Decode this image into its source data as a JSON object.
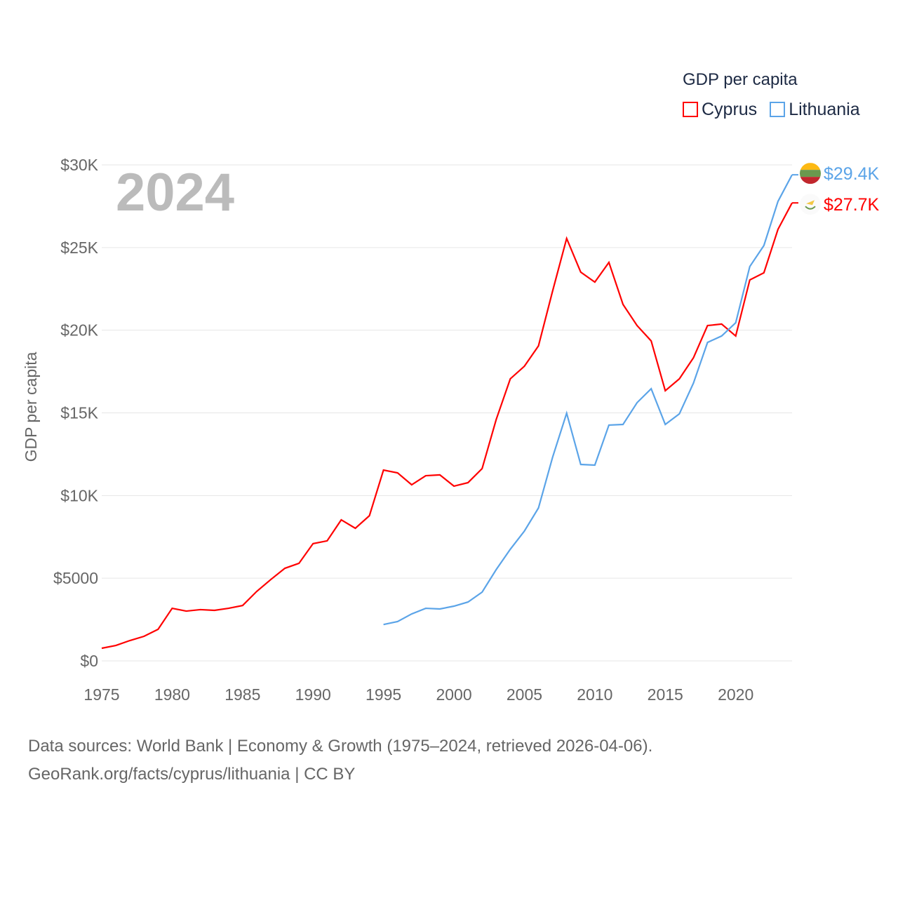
{
  "chart_data": {
    "type": "line",
    "title": "GDP per capita",
    "ylabel": "GDP per capita",
    "xlabel": "",
    "year_label": "2024",
    "xlim": [
      1975,
      2024
    ],
    "ylim": [
      0,
      30000
    ],
    "x_ticks": [
      "1975",
      "1980",
      "1985",
      "1990",
      "1995",
      "2000",
      "2005",
      "2010",
      "2015",
      "2020"
    ],
    "y_ticks": [
      {
        "value": 0,
        "label": "$0"
      },
      {
        "value": 5000,
        "label": "$5000"
      },
      {
        "value": 10000,
        "label": "$10K"
      },
      {
        "value": 15000,
        "label": "$15K"
      },
      {
        "value": 20000,
        "label": "$20K"
      },
      {
        "value": 25000,
        "label": "$25K"
      },
      {
        "value": 30000,
        "label": "$30K"
      }
    ],
    "grid": true,
    "legend_position": "top-right",
    "series": [
      {
        "name": "Cyprus",
        "color": "#ff0000",
        "end_label": "$27.7K",
        "flag": "cyprus-flag",
        "start": 1975,
        "values": [
          764,
          930,
          1230,
          1485,
          1910,
          3180,
          3010,
          3100,
          3055,
          3180,
          3350,
          4200,
          4920,
          5600,
          5900,
          7090,
          7260,
          8530,
          8020,
          8780,
          11540,
          11370,
          10650,
          11200,
          11250,
          10570,
          10780,
          11630,
          14600,
          17060,
          17820,
          19050,
          22360,
          25550,
          23510,
          22910,
          24100,
          21560,
          20280,
          19350,
          16340,
          17060,
          18330,
          20280,
          20370,
          19650,
          23040,
          23470,
          26100,
          27700
        ]
      },
      {
        "name": "Lithuania",
        "color": "#5ba4e8",
        "end_label": "$29.4K",
        "flag": "lithuania-flag",
        "start": 1995,
        "values": [
          2200,
          2380,
          2840,
          3180,
          3140,
          3310,
          3560,
          4160,
          5520,
          6750,
          7850,
          9250,
          12310,
          14980,
          11880,
          11840,
          14260,
          14300,
          15620,
          16460,
          14300,
          14940,
          16800,
          19260,
          19650,
          20450,
          23850,
          25120,
          27790,
          29400
        ]
      }
    ]
  },
  "footer": {
    "line1": "Data sources: World Bank | Economy & Growth (1975–2024, retrieved 2026-04-06).",
    "line2": "GeoRank.org/facts/cyprus/lithuania | CC BY"
  }
}
